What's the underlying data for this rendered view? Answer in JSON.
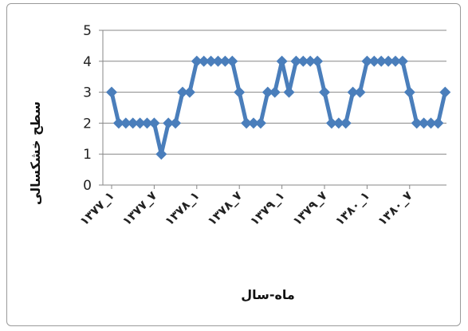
{
  "chart_data": {
    "type": "line",
    "xlabel": "ماه-سال",
    "ylabel": "سطح خشکسالی",
    "ylim": [
      0,
      5
    ],
    "y_ticks": [
      0,
      1,
      2,
      3,
      4,
      5
    ],
    "grid": true,
    "legend": "none",
    "x_tick_labels": [
      "۱۳۷۷_۱",
      "۱۳۷۷_۷",
      "۱۳۷۸_۱",
      "۱۳۷۸_۷",
      "۱۳۷۹_۱",
      "۱۳۷۹_۷",
      "۱۳۸۰_۱",
      "۱۳۸۰_۷"
    ],
    "series": [
      {
        "color": "#4a7ebb",
        "values": [
          3,
          2,
          2,
          2,
          2,
          2,
          2,
          1,
          2,
          2,
          3,
          3,
          4,
          4,
          4,
          4,
          4,
          4,
          3,
          2,
          2,
          2,
          3,
          3,
          4,
          3,
          4,
          4,
          4,
          4,
          3,
          2,
          2,
          2,
          3,
          3,
          4,
          4,
          4,
          4,
          4,
          4,
          3,
          2,
          2,
          2,
          2,
          3
        ]
      }
    ]
  }
}
